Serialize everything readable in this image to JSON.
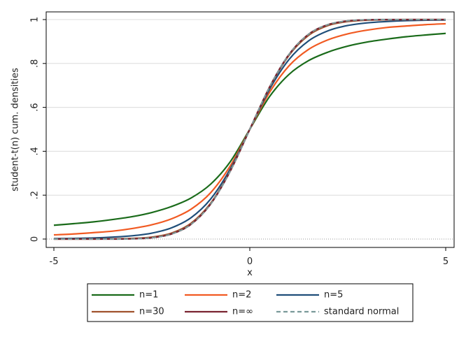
{
  "chart_data": {
    "type": "line",
    "xlabel": "x",
    "ylabel": "student-t(n) cum. densities",
    "xlim": [
      -5,
      5
    ],
    "ylim": [
      0,
      1
    ],
    "x_ticks": [
      {
        "value": -5,
        "label": "-5"
      },
      {
        "value": 0,
        "label": "0"
      },
      {
        "value": 5,
        "label": "5"
      }
    ],
    "y_ticks": [
      {
        "value": 0,
        "label": "0"
      },
      {
        "value": 0.2,
        "label": ".2"
      },
      {
        "value": 0.4,
        "label": ".4"
      },
      {
        "value": 0.6,
        "label": ".6"
      },
      {
        "value": 0.8,
        "label": ".8"
      },
      {
        "value": 1,
        "label": "1"
      }
    ],
    "grid": true,
    "legend_position": "bottom",
    "series": [
      {
        "name": "n=1",
        "color": "#1a6b1a",
        "dash": false,
        "x": [
          -5,
          -4.5,
          -4,
          -3.5,
          -3,
          -2.5,
          -2,
          -1.5,
          -1,
          -0.5,
          0,
          0.5,
          1,
          1.5,
          2,
          2.5,
          3,
          3.5,
          4,
          4.5,
          5
        ],
        "y": [
          0.063,
          0.07,
          0.078,
          0.089,
          0.102,
          0.121,
          0.148,
          0.187,
          0.25,
          0.352,
          0.5,
          0.648,
          0.75,
          0.813,
          0.852,
          0.879,
          0.898,
          0.911,
          0.922,
          0.93,
          0.937
        ]
      },
      {
        "name": "n=2",
        "color": "#f15a22",
        "dash": false,
        "x": [
          -5,
          -4.5,
          -4,
          -3.5,
          -3,
          -2.5,
          -2,
          -1.5,
          -1,
          -0.5,
          0,
          0.5,
          1,
          1.5,
          2,
          2.5,
          3,
          3.5,
          4,
          4.5,
          5
        ],
        "y": [
          0.019,
          0.023,
          0.029,
          0.036,
          0.048,
          0.065,
          0.092,
          0.136,
          0.211,
          0.333,
          0.5,
          0.667,
          0.789,
          0.864,
          0.908,
          0.935,
          0.952,
          0.964,
          0.971,
          0.977,
          0.981
        ]
      },
      {
        "name": "n=5",
        "color": "#1f4e79",
        "dash": false,
        "x": [
          -5,
          -4.5,
          -4,
          -3.5,
          -3,
          -2.5,
          -2,
          -1.5,
          -1,
          -0.5,
          0,
          0.5,
          1,
          1.5,
          2,
          2.5,
          3,
          3.5,
          4,
          4.5,
          5
        ],
        "y": [
          0.002,
          0.003,
          0.005,
          0.009,
          0.015,
          0.027,
          0.051,
          0.097,
          0.182,
          0.319,
          0.5,
          0.681,
          0.818,
          0.903,
          0.949,
          0.973,
          0.985,
          0.991,
          0.995,
          0.997,
          0.998
        ]
      },
      {
        "name": "n=30",
        "color": "#a0522d",
        "dash": false,
        "x": [
          -5,
          -4.5,
          -4,
          -3.5,
          -3,
          -2.5,
          -2,
          -1.5,
          -1,
          -0.5,
          0,
          0.5,
          1,
          1.5,
          2,
          2.5,
          3,
          3.5,
          4,
          4.5,
          5
        ],
        "y": [
          0.0,
          0.0,
          0.0,
          0.001,
          0.003,
          0.009,
          0.027,
          0.072,
          0.163,
          0.31,
          0.5,
          0.69,
          0.837,
          0.928,
          0.973,
          0.991,
          0.997,
          0.999,
          1.0,
          1.0,
          1.0
        ]
      },
      {
        "name": "n=∞",
        "color": "#7a2431",
        "dash": false,
        "x": [
          -5,
          -4.5,
          -4,
          -3.5,
          -3,
          -2.5,
          -2,
          -1.5,
          -1,
          -0.5,
          0,
          0.5,
          1,
          1.5,
          2,
          2.5,
          3,
          3.5,
          4,
          4.5,
          5
        ],
        "y": [
          0.0,
          0.0,
          0.0,
          0.0,
          0.001,
          0.006,
          0.023,
          0.067,
          0.159,
          0.309,
          0.5,
          0.691,
          0.841,
          0.933,
          0.977,
          0.994,
          0.999,
          1.0,
          1.0,
          1.0,
          1.0
        ]
      },
      {
        "name": "standard normal",
        "color": "#7a9a9a",
        "dash": true,
        "x": [
          -5,
          -4.5,
          -4,
          -3.5,
          -3,
          -2.5,
          -2,
          -1.5,
          -1,
          -0.5,
          0,
          0.5,
          1,
          1.5,
          2,
          2.5,
          3,
          3.5,
          4,
          4.5,
          5
        ],
        "y": [
          0.0,
          0.0,
          0.0,
          0.0,
          0.001,
          0.006,
          0.023,
          0.067,
          0.159,
          0.309,
          0.5,
          0.691,
          0.841,
          0.933,
          0.977,
          0.994,
          0.999,
          1.0,
          1.0,
          1.0,
          1.0
        ]
      }
    ]
  }
}
